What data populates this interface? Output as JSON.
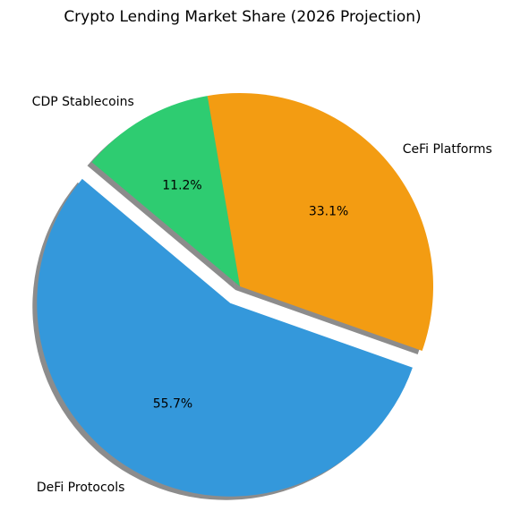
{
  "chart_data": {
    "type": "pie",
    "title": "Crypto Lending Market Share (2026 Projection)",
    "slices": [
      {
        "label": "DeFi Protocols",
        "value": 55.7,
        "pct_label": "55.7%",
        "color": "#3498db",
        "exploded": true
      },
      {
        "label": "CeFi Platforms",
        "value": 33.1,
        "pct_label": "33.1%",
        "color": "#f39c12",
        "exploded": false
      },
      {
        "label": "CDP Stablecoins",
        "value": 11.2,
        "pct_label": "11.2%",
        "color": "#2ecc71",
        "exploded": false
      }
    ],
    "start_angle_deg": 140,
    "direction": "counterclockwise",
    "shadow": true,
    "legend": "none"
  }
}
